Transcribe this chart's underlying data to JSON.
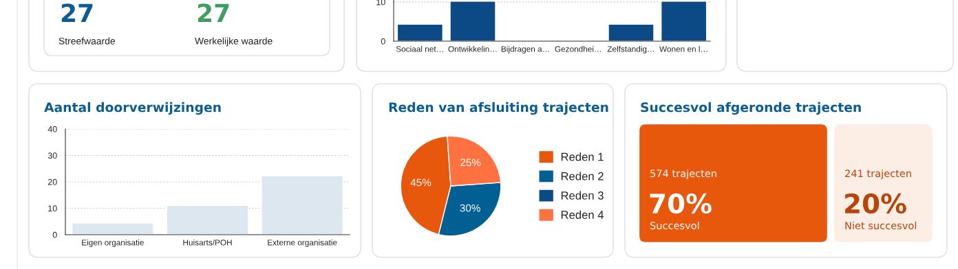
{
  "chart_data": [
    {
      "type": "other",
      "categories": [
        "Streefwaarde",
        "Werkelijke waarde"
      ],
      "values": [
        27,
        27
      ],
      "value_labels": [
        "27",
        "27"
      ],
      "colors": [
        "#0a5e94",
        "#3e9e5e"
      ]
    },
    {
      "type": "bar",
      "categories": [
        "Sociaal net…",
        "Ontwikkelin…",
        "Bijdragen a…",
        "Gezondhei…",
        "Zelfstandig…",
        "Wonen en l…"
      ],
      "values": [
        4.3,
        10.2,
        null,
        null,
        4.3,
        10.2
      ],
      "color": "#0b4a84",
      "ylim": [
        0,
        10.5
      ],
      "yticks": [
        0,
        10
      ],
      "grid": "y"
    },
    {
      "type": "bar",
      "title": "Aantal doorverwijzingen",
      "categories": [
        "Eigen organisatie",
        "Huisarts/POH",
        "Externe organisatie"
      ],
      "values": [
        4.4,
        11.1,
        22.3
      ],
      "color": "#dde7f0",
      "ylim": [
        0,
        40
      ],
      "yticks": [
        0,
        10,
        20,
        30,
        40
      ],
      "grid": "y"
    },
    {
      "type": "pie",
      "title": "Reden van afsluiting trajecten",
      "categories": [
        "Reden 1",
        "Reden 2",
        "Reden 3",
        "Reden 4"
      ],
      "values": [
        45,
        30,
        0,
        25
      ],
      "value_labels": [
        "45%",
        "30%",
        null,
        "25%"
      ],
      "colors": [
        "#e8580c",
        "#025f93",
        "#0b4a84",
        "#ff7140"
      ],
      "legend": "right"
    },
    {
      "type": "other",
      "title": "Succesvol afgeronde trajecten",
      "categories": [
        "Succesvol",
        "Niet succesvol"
      ],
      "values": [
        70,
        20
      ],
      "value_labels": [
        "70%",
        "20%"
      ],
      "annotations": [
        "574 trajecten",
        "241 trajecten"
      ],
      "colors": [
        "#e8580c",
        "#fdeee5"
      ]
    }
  ]
}
